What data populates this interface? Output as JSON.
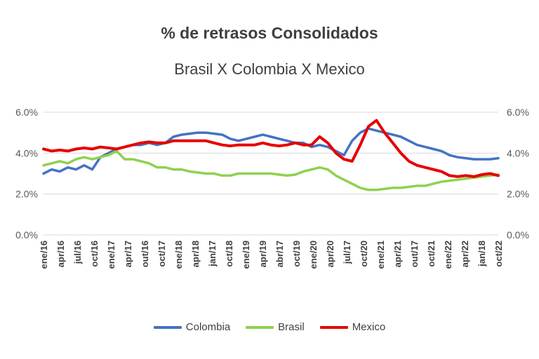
{
  "chart_data": {
    "type": "line",
    "title": "% de retrasos Consolidados",
    "subtitle": "Brasil X Colombia X Mexico",
    "y_ticks_left": [
      "0.0%",
      "2.0%",
      "4.0%",
      "6.0%"
    ],
    "y_ticks_right": [
      "0.0%",
      "2.0%",
      "4.0%",
      "6.0%"
    ],
    "ylim": [
      0,
      6
    ],
    "grid": true,
    "legend_position": "bottom",
    "x_tick_labels": [
      "ene/16",
      "apr/16",
      "jul/16",
      "oct/16",
      "ene/17",
      "apr/17",
      "out/16",
      "oct/17",
      "ene/18",
      "apr/18",
      "jan/17",
      "oct/18",
      "ene/19",
      "apr/19",
      "abr/17",
      "oct/19",
      "ene/20",
      "apr/20",
      "jul/17",
      "oct/20",
      "ene/21",
      "apr/21",
      "out/17",
      "oct/21",
      "ene/22",
      "apr/22",
      "jan/18",
      "oct/22"
    ],
    "series": [
      {
        "name": "Colombia",
        "color": "#4472c4",
        "values": [
          3.0,
          3.2,
          3.1,
          3.3,
          3.2,
          3.4,
          3.2,
          3.8,
          4.0,
          4.2,
          4.3,
          4.4,
          4.4,
          4.5,
          4.4,
          4.5,
          4.8,
          4.9,
          4.95,
          5.0,
          5.0,
          4.95,
          4.9,
          4.7,
          4.6,
          4.7,
          4.8,
          4.9,
          4.8,
          4.7,
          4.6,
          4.5,
          4.5,
          4.3,
          4.4,
          4.3,
          4.1,
          3.9,
          4.6,
          5.0,
          5.2,
          5.1,
          5.0,
          4.9,
          4.8,
          4.6,
          4.4,
          4.3,
          4.2,
          4.1,
          3.9,
          3.8,
          3.75,
          3.7,
          3.7,
          3.7,
          3.75
        ]
      },
      {
        "name": "Brasil",
        "color": "#8fd14f",
        "values": [
          3.4,
          3.5,
          3.6,
          3.5,
          3.7,
          3.8,
          3.7,
          3.8,
          3.9,
          4.1,
          3.7,
          3.7,
          3.6,
          3.5,
          3.3,
          3.3,
          3.2,
          3.2,
          3.1,
          3.05,
          3.0,
          3.0,
          2.9,
          2.9,
          3.0,
          3.0,
          3.0,
          3.0,
          3.0,
          2.95,
          2.9,
          2.95,
          3.1,
          3.2,
          3.3,
          3.2,
          2.9,
          2.7,
          2.5,
          2.3,
          2.2,
          2.2,
          2.25,
          2.3,
          2.3,
          2.35,
          2.4,
          2.4,
          2.5,
          2.6,
          2.65,
          2.7,
          2.75,
          2.8,
          2.85,
          2.9,
          2.95
        ]
      },
      {
        "name": "Mexico",
        "color": "#e60000",
        "values": [
          4.2,
          4.1,
          4.15,
          4.1,
          4.2,
          4.25,
          4.2,
          4.3,
          4.25,
          4.2,
          4.3,
          4.4,
          4.5,
          4.55,
          4.5,
          4.5,
          4.6,
          4.6,
          4.6,
          4.6,
          4.6,
          4.5,
          4.4,
          4.35,
          4.4,
          4.4,
          4.4,
          4.5,
          4.4,
          4.35,
          4.4,
          4.5,
          4.4,
          4.4,
          4.8,
          4.5,
          4.0,
          3.7,
          3.6,
          4.4,
          5.3,
          5.6,
          5.0,
          4.5,
          4.0,
          3.6,
          3.4,
          3.3,
          3.2,
          3.1,
          2.9,
          2.85,
          2.9,
          2.85,
          2.95,
          3.0,
          2.9
        ]
      }
    ]
  }
}
